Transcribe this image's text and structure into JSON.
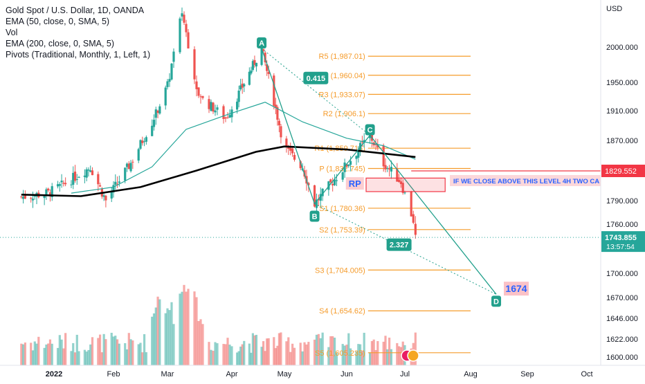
{
  "legend": {
    "symbol": "Gold Spot / U.S. Dollar, 1D, OANDA",
    "ema50": "EMA (50, close, 0, SMA, 5)",
    "vol": "Vol",
    "ema200": "EMA (200, close, 0, SMA, 5)",
    "pivots": "Pivots (Traditional, Monthly, 1, Left, 1)"
  },
  "price_axis": {
    "currency": "USD",
    "ticks": [
      "2000.000",
      "1950.000",
      "1910.000",
      "1870.000",
      "1790.000",
      "1760.000",
      "1700.000",
      "1670.000",
      "1646.000",
      "1622.000",
      "1600.000"
    ],
    "current_price": "1743.855",
    "countdown": "13:57:54",
    "level_tag": "1829.552"
  },
  "time_axis": {
    "ticks": [
      "2022",
      "Feb",
      "Mar",
      "Apr",
      "May",
      "Jun",
      "Jul",
      "Aug",
      "Sep",
      "Oct"
    ]
  },
  "colors": {
    "up": "#26a69a",
    "down": "#ef5350",
    "pivot": "#f59b2a",
    "ema50": "#26a69a",
    "ema200": "#000000",
    "pattern": "#22a08c",
    "level": "#f23645"
  },
  "annotations": {
    "pivots": [
      {
        "label": "R5 (1,987.01)",
        "price": 1987.01
      },
      {
        "label": "R4 (1,960.04)",
        "price": 1960.04
      },
      {
        "label": "R3 (1,933.07)",
        "price": 1933.07
      },
      {
        "label": "R2 (1,906.1)",
        "price": 1906.1
      },
      {
        "label": "R1 (1,859.715)",
        "price": 1859.715
      },
      {
        "label": "P (1,832.745)",
        "price": 1832.745
      },
      {
        "label": "S1 (1,780.36)",
        "price": 1780.36
      },
      {
        "label": "S2 (1,753.39)",
        "price": 1753.39
      },
      {
        "label": "S3 (1,704.005)",
        "price": 1704.005
      },
      {
        "label": "S4 (1,654.62)",
        "price": 1654.62
      },
      {
        "label": "S5 (1,605.235)",
        "price": 1605.235
      }
    ],
    "points": [
      {
        "label": "A",
        "price": 1998
      },
      {
        "label": "B",
        "price": 1786
      },
      {
        "label": "C",
        "price": 1877
      },
      {
        "label": "D",
        "price": 1674
      }
    ],
    "ratio_ac": "0.415",
    "ratio_bd": "2.327",
    "rp_label": "RP",
    "target_label": "1674",
    "note": "IF WE CLOSE ABOVE THIS LEVEL 4H TWO CA"
  },
  "chart_data": {
    "type": "line",
    "title": "Gold Spot / U.S. Dollar, 1D, OANDA",
    "xlabel": "",
    "ylabel": "USD",
    "x_range": [
      "2021-12-14",
      "2022-10-20"
    ],
    "ylim": [
      1596,
      2025
    ],
    "grid": false,
    "legend_placement": "top-left",
    "series": [
      {
        "name": "Gold Spot / U.S. Dollar, 1D, OANDA",
        "x": [
          "2021-12-15",
          "2021-12-29",
          "2022-01-05",
          "2022-01-20",
          "2022-01-28",
          "2022-02-10",
          "2022-02-22",
          "2022-03-01",
          "2022-03-08",
          "2022-03-16",
          "2022-03-29",
          "2022-04-18",
          "2022-05-01",
          "2022-05-10",
          "2022-05-16",
          "2022-05-31",
          "2022-06-13",
          "2022-06-20",
          "2022-06-29",
          "2022-07-05",
          "2022-07-06"
        ],
        "values": [
          1795,
          1800,
          1810,
          1835,
          1790,
          1840,
          1900,
          1945,
          2050,
          1930,
          1900,
          1998,
          1860,
          1835,
          1786,
          1835,
          1877,
          1840,
          1815,
          1765,
          1743.855
        ]
      },
      {
        "name": "EMA (50, close, 0, SMA, 5)",
        "x": [
          "2022-01-10",
          "2022-02-01",
          "2022-02-21",
          "2022-03-10",
          "2022-03-30",
          "2022-04-20",
          "2022-05-10",
          "2022-06-01",
          "2022-06-20",
          "2022-07-06"
        ],
        "values": [
          1800,
          1808,
          1835,
          1885,
          1905,
          1922,
          1895,
          1873,
          1863,
          1845
        ]
      },
      {
        "name": "EMA (200, close, 0, SMA, 5)",
        "x": [
          "2021-12-15",
          "2022-01-15",
          "2022-02-15",
          "2022-03-15",
          "2022-04-15",
          "2022-05-01",
          "2022-06-01",
          "2022-07-06"
        ],
        "values": [
          1798,
          1796,
          1808,
          1830,
          1855,
          1862,
          1858,
          1848
        ]
      }
    ]
  }
}
